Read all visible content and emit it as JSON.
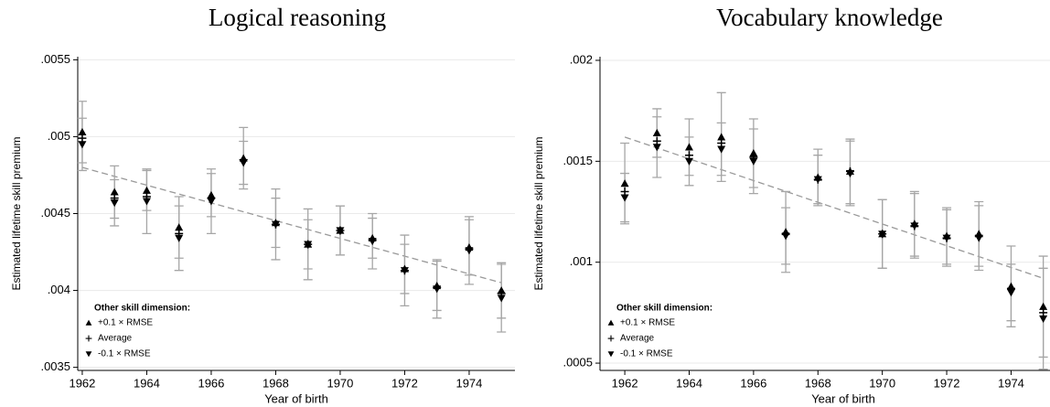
{
  "chart_data": [
    {
      "type": "scatter",
      "title": "Logical reasoning",
      "xlabel": "Year of birth",
      "ylabel": "Estimated lifetime skill premium",
      "x": [
        1962,
        1963,
        1964,
        1965,
        1966,
        1967,
        1968,
        1969,
        1970,
        1971,
        1972,
        1973,
        1974,
        1975
      ],
      "xlim": [
        1961.86,
        1975.42
      ],
      "xticks": [
        1962,
        1964,
        1966,
        1968,
        1970,
        1972,
        1974
      ],
      "ylim": [
        0.00348,
        0.00552
      ],
      "yticks": [
        {
          "value": 0.0035,
          "label": ".0035"
        },
        {
          "value": 0.004,
          "label": ".004"
        },
        {
          "value": 0.0045,
          "label": ".0045"
        },
        {
          "value": 0.005,
          "label": ".005"
        },
        {
          "value": 0.0055,
          "label": ".0055"
        }
      ],
      "grid": true,
      "legend": "lower left",
      "legend_title": "Other skill dimension:",
      "error_color": "#a6a6a6",
      "series": [
        {
          "name": "+0.1 × RMSE",
          "marker": "triangle-up",
          "color": "#000000",
          "values": [
            0.00503,
            0.00464,
            0.00465,
            0.00441,
            0.00462,
            0.00486,
            0.00444,
            0.0043,
            0.00439,
            0.00434,
            0.00414,
            0.00403,
            0.00428,
            0.004
          ],
          "errors": [
            0.0002,
            0.00017,
            0.00013,
            0.0002,
            0.00014,
            0.0002,
            0.00016,
            0.00016,
            0.00016,
            0.00013,
            0.00016,
            0.00016,
            0.00018,
            0.00018
          ]
        },
        {
          "name": "Average",
          "marker": "plus",
          "color": "#000000",
          "values": [
            0.00499,
            0.0046,
            0.00461,
            0.00437,
            0.0046,
            0.00485,
            0.00443,
            0.0043,
            0.00439,
            0.00433,
            0.00413,
            0.00402,
            0.00427,
            0.00398
          ]
        },
        {
          "name": "-0.1 × RMSE",
          "marker": "triangle-down",
          "color": "#000000",
          "values": [
            0.00495,
            0.00457,
            0.00458,
            0.00434,
            0.00458,
            0.00483,
            0.00443,
            0.0043,
            0.00439,
            0.00432,
            0.00413,
            0.00401,
            0.00426,
            0.00395
          ],
          "errors": [
            0.00017,
            0.00015,
            0.00021,
            0.00021,
            0.00021,
            0.00014,
            0.00023,
            0.00023,
            0.00016,
            0.00018,
            0.00023,
            0.00019,
            0.00022,
            0.00022
          ]
        }
      ],
      "trend": {
        "x": [
          1962,
          1975
        ],
        "y": [
          0.0048,
          0.00405
        ],
        "color": "#999999"
      }
    },
    {
      "type": "scatter",
      "title": "Vocabulary knowledge",
      "xlabel": "Year of birth",
      "ylabel": "Estimated lifetime skill premium",
      "x": [
        1962,
        1963,
        1964,
        1965,
        1966,
        1967,
        1968,
        1969,
        1970,
        1971,
        1972,
        1973,
        1974,
        1975
      ],
      "xlim": [
        1961.23,
        1975.55
      ],
      "xticks": [
        1962,
        1964,
        1966,
        1968,
        1970,
        1972,
        1974
      ],
      "ylim": [
        0.000464,
        0.002018
      ],
      "yticks": [
        {
          "value": 0.0005,
          "label": ".0005"
        },
        {
          "value": 0.001,
          "label": ".001"
        },
        {
          "value": 0.0015,
          "label": ".0015"
        },
        {
          "value": 0.002,
          "label": ".002"
        }
      ],
      "grid": true,
      "legend": "lower left",
      "legend_title": "Other skill dimension:",
      "error_color": "#a6a6a6",
      "series": [
        {
          "name": "+0.1 × RMSE",
          "marker": "triangle-up",
          "color": "#000000",
          "values": [
            0.00139,
            0.00164,
            0.00157,
            0.00162,
            0.00154,
            0.00115,
            0.00142,
            0.00145,
            0.00114,
            0.00119,
            0.00113,
            0.00114,
            0.00088,
            0.00078
          ],
          "errors": [
            0.0002,
            0.00012,
            0.00014,
            0.00022,
            0.00017,
            0.0002,
            0.00014,
            0.00016,
            0.00017,
            0.00016,
            0.00014,
            0.00016,
            0.0002,
            0.00025
          ]
        },
        {
          "name": "Average",
          "marker": "plus",
          "color": "#000000",
          "values": [
            0.00135,
            0.0016,
            0.00153,
            0.00159,
            0.00152,
            0.00114,
            0.00141,
            0.00145,
            0.00114,
            0.00118,
            0.00112,
            0.00113,
            0.00087,
            0.00075
          ]
        },
        {
          "name": "-0.1 × RMSE",
          "marker": "triangle-down",
          "color": "#000000",
          "values": [
            0.00132,
            0.00157,
            0.0015,
            0.00156,
            0.0015,
            0.00113,
            0.00141,
            0.00144,
            0.00114,
            0.00118,
            0.00112,
            0.00112,
            0.00085,
            0.00072
          ],
          "errors": [
            0.00012,
            0.00015,
            0.00012,
            0.00013,
            0.00016,
            0.00014,
            0.00012,
            0.00016,
            0.00017,
            0.00016,
            0.00014,
            0.00016,
            0.00014,
            0.00025
          ]
        }
      ],
      "trend": {
        "x": [
          1962,
          1975
        ],
        "y": [
          0.00162,
          0.00092
        ],
        "color": "#999999"
      }
    }
  ]
}
